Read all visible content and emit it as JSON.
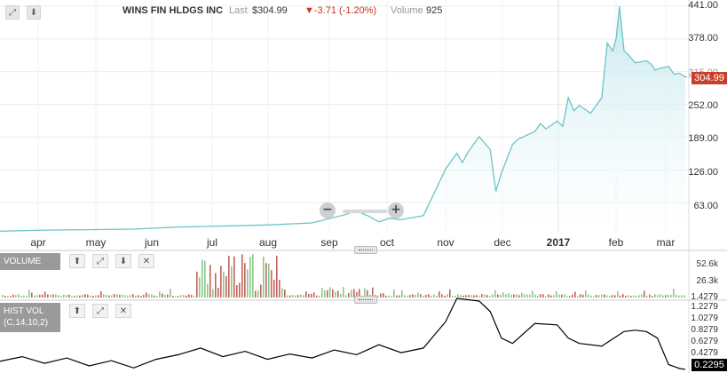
{
  "header": {
    "name": "WINS FIN HLDGS INC",
    "last_label": "Last",
    "last_value": "$304.99",
    "change": "▼-3.71 (-1.20%)",
    "volume_label": "Volume",
    "volume_value": "925"
  },
  "colors": {
    "price_line": "#6cc4c4",
    "price_fill": "#d8f0f4",
    "volume_up": "#8ac78a",
    "volume_down": "#c0645a",
    "hv_line": "#000000",
    "badge_price": "#c8402a"
  },
  "price_badge": "304.99",
  "hv_badge": "0.2295",
  "volume_panel": {
    "label": "VOLUME"
  },
  "hv_panel": {
    "label_line1": "HIST VOL",
    "label_line2": "(C,14,10,2)"
  },
  "icons": [
    "expand-icon",
    "download-icon",
    "up-arrow-icon",
    "down-arrow-icon",
    "close-icon",
    "zoom-out-icon",
    "zoom-in-icon"
  ],
  "chart_data": [
    {
      "type": "area",
      "title": "WINS FIN HLDGS INC",
      "x_ticks": [
        "apr",
        "may",
        "jun",
        "jul",
        "aug",
        "sep",
        "oct",
        "nov",
        "dec",
        "2017",
        "feb",
        "mar"
      ],
      "y_ticks": [
        "441.00",
        "378.00",
        "315.00",
        "252.00",
        "189.00",
        "126.00",
        "63.00"
      ],
      "ylim": [
        0,
        441
      ],
      "last_price": 304.99,
      "series": [
        {
          "name": "",
          "x": [
            0,
            4,
            8,
            12,
            16,
            20,
            24,
            28,
            31,
            32,
            32.5,
            33,
            34,
            35,
            36,
            38,
            40,
            41,
            41.5,
            42,
            43,
            44,
            44.5,
            45,
            46,
            46.5,
            47,
            48,
            48.5,
            49,
            50,
            50.5,
            51,
            51.5,
            52,
            53,
            54,
            54.5,
            55,
            55.3,
            55.6,
            56,
            56.5,
            57,
            58,
            58.4,
            58.8,
            59.3,
            60,
            60.5,
            61,
            61.5
          ],
          "values": [
            8,
            10,
            11,
            12,
            16,
            18,
            20,
            24,
            40,
            48,
            42,
            38,
            26,
            33,
            30,
            38,
            128,
            158,
            140,
            160,
            190,
            165,
            85,
            120,
            175,
            185,
            190,
            200,
            215,
            205,
            220,
            210,
            265,
            240,
            250,
            235,
            265,
            370,
            355,
            380,
            441,
            355,
            345,
            332,
            336,
            330,
            318,
            322,
            325,
            310,
            312,
            305
          ]
        }
      ]
    },
    {
      "type": "bar",
      "title": "VOLUME",
      "y_ticks": [
        "52.6k",
        "26.3k",
        "1.4279"
      ],
      "ylim": [
        0,
        60000
      ]
    },
    {
      "type": "line",
      "title": "HIST VOL (C,14,10,2)",
      "y_ticks": [
        "1.2279",
        "1.0279",
        "0.8279",
        "0.6279",
        "0.4279",
        "0.2295"
      ],
      "ylim": [
        0.2,
        1.3
      ],
      "series": [
        {
          "name": "",
          "x": [
            0,
            2,
            4,
            6,
            8,
            10,
            12,
            14,
            16,
            18,
            20,
            22,
            24,
            26,
            28,
            30,
            32,
            34,
            36,
            38,
            40,
            41,
            42,
            43,
            44,
            45,
            46,
            48,
            50,
            51,
            52,
            54,
            56,
            57,
            58,
            59,
            60,
            61,
            61.5
          ],
          "values": [
            0.35,
            0.42,
            0.32,
            0.4,
            0.28,
            0.36,
            0.25,
            0.38,
            0.45,
            0.55,
            0.42,
            0.5,
            0.38,
            0.46,
            0.4,
            0.52,
            0.45,
            0.6,
            0.48,
            0.55,
            0.95,
            1.3,
            1.28,
            1.26,
            1.1,
            0.7,
            0.62,
            0.92,
            0.9,
            0.7,
            0.62,
            0.58,
            0.8,
            0.82,
            0.8,
            0.7,
            0.3,
            0.24,
            0.2295
          ]
        }
      ]
    }
  ]
}
